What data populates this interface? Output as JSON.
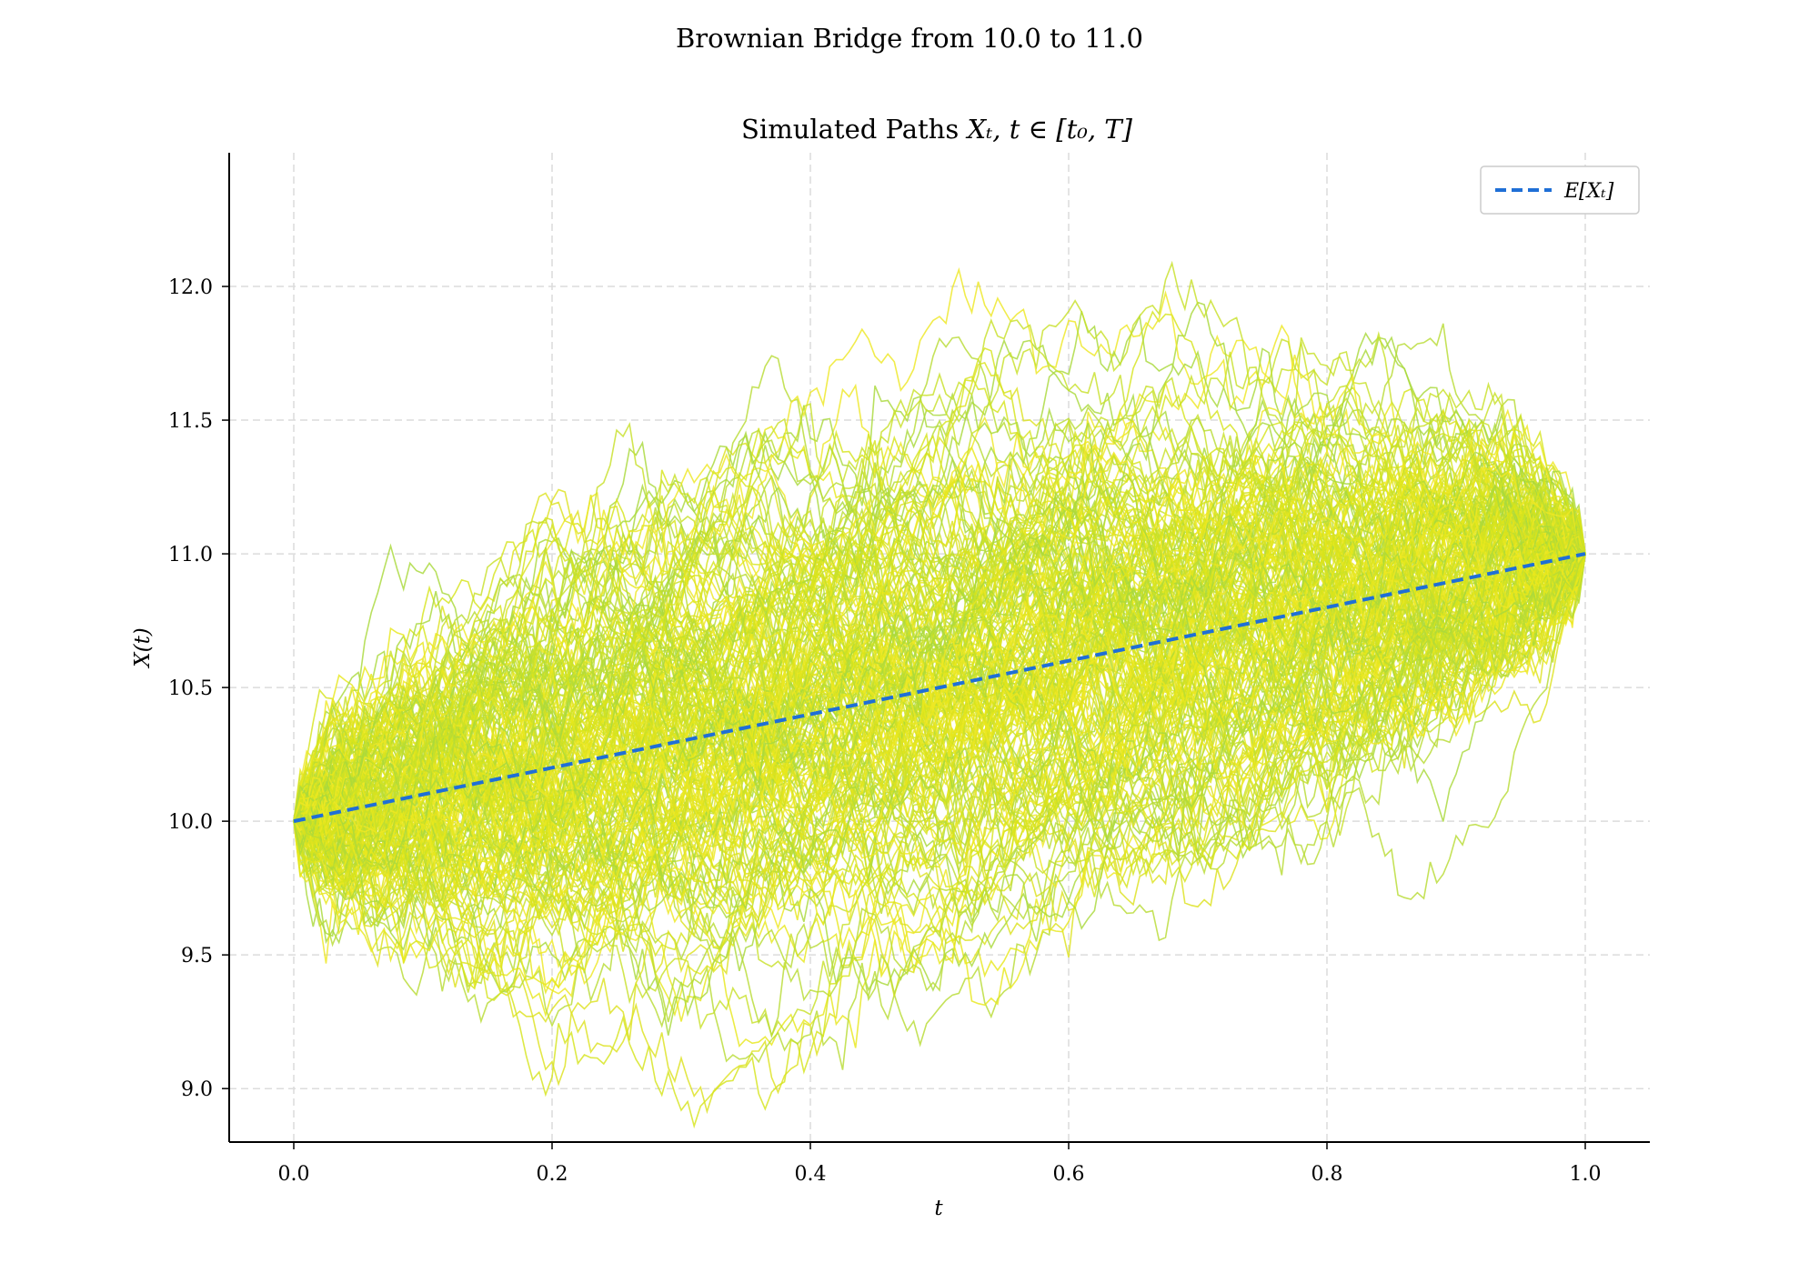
{
  "figure": {
    "title": "Brownian Bridge from 10.0 to 11.0"
  },
  "chart_data": {
    "type": "line",
    "title": "Simulated Paths X_t, t ∈ [t0, T]",
    "title_text": "Simulated Paths",
    "title_math": "Xₜ, t ∈ [t₀, T]",
    "xlabel": "t",
    "ylabel": "X(t)",
    "xlim": [
      -0.05,
      1.05
    ],
    "ylim": [
      8.8,
      12.5
    ],
    "xticks": [
      0.0,
      0.2,
      0.4,
      0.6,
      0.8,
      1.0
    ],
    "xtick_labels": [
      "0.0",
      "0.2",
      "0.4",
      "0.6",
      "0.8",
      "1.0"
    ],
    "yticks": [
      9.0,
      9.5,
      10.0,
      10.5,
      11.0,
      11.5,
      12.0
    ],
    "ytick_labels": [
      "9.0",
      "9.5",
      "10.0",
      "10.5",
      "11.0",
      "11.5",
      "12.0"
    ],
    "grid": true,
    "legend_position": "top-right",
    "process": {
      "start_value": 10.0,
      "end_value": 11.0,
      "t_start": 0.0,
      "t_end": 1.0
    },
    "series": [
      {
        "name": "E[X_t]",
        "legend_label": "E[Xₜ]",
        "style": "dashed",
        "color": "#1f6fd6",
        "x": [
          0.0,
          1.0
        ],
        "y": [
          10.0,
          11.0
        ]
      }
    ],
    "path_colors": [
      "#e8e81c",
      "#d6e41c",
      "#c8e02a",
      "#b8dc34",
      "#eee825",
      "#dde21f",
      "#a9d93c"
    ]
  }
}
